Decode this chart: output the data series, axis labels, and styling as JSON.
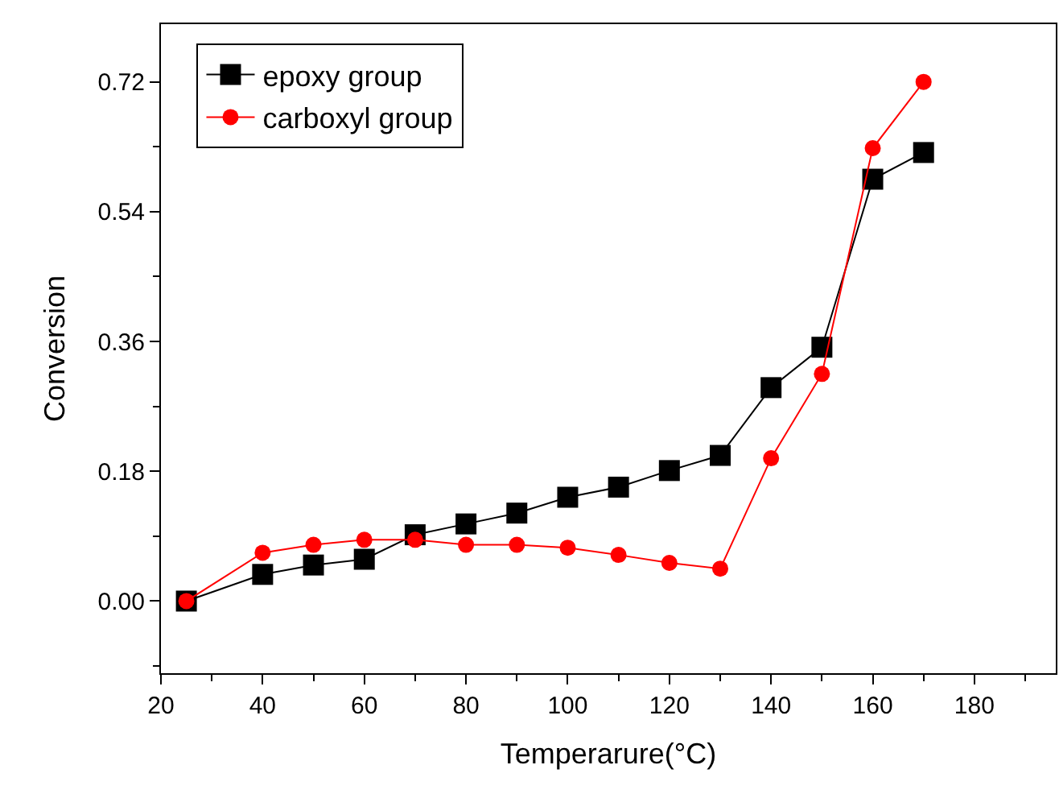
{
  "chart_data": {
    "type": "line",
    "xlabel": "Temperarure(°C)",
    "ylabel": "Conversion",
    "x": [
      25,
      40,
      50,
      60,
      70,
      80,
      90,
      100,
      110,
      120,
      130,
      140,
      150,
      160,
      170
    ],
    "series": [
      {
        "name": "epoxy group",
        "color": "#000000",
        "marker": "square",
        "values": [
          0.0,
          0.037,
          0.05,
          0.058,
          0.092,
          0.107,
          0.122,
          0.144,
          0.158,
          0.181,
          0.202,
          0.296,
          0.352,
          0.585,
          0.622
        ]
      },
      {
        "name": "carboxyl group",
        "color": "#ff0000",
        "marker": "circle",
        "values": [
          0.0,
          0.067,
          0.078,
          0.085,
          0.085,
          0.078,
          0.078,
          0.074,
          0.064,
          0.053,
          0.045,
          0.198,
          0.315,
          0.628,
          0.72
        ]
      }
    ],
    "xlim": [
      20,
      196
    ],
    "xticks": [
      20,
      40,
      60,
      80,
      100,
      120,
      140,
      160,
      180
    ],
    "ylim": [
      -0.1,
      0.8
    ],
    "yticks": [
      {
        "value": 0,
        "label": "0.00"
      },
      {
        "value": 0.18,
        "label": "0.18"
      },
      {
        "value": 0.36,
        "label": "0.36"
      },
      {
        "value": 0.54,
        "label": "0.54"
      },
      {
        "value": 0.72,
        "label": "0.72"
      }
    ],
    "legend": "top left",
    "line_style": "solid"
  }
}
